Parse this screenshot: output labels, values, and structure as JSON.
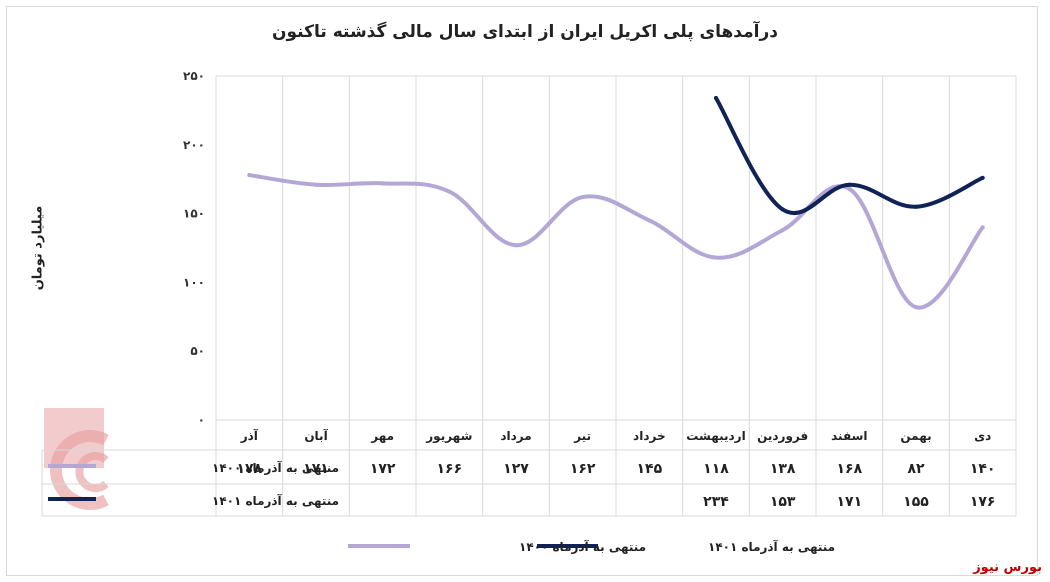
{
  "brand": "بورس نیوز",
  "chart_data": {
    "type": "line",
    "title": "درآمدهای پلی اکریل ایران از ابتدای سال مالی گذشته تاکنون",
    "ylabel": "میلیارد تومان",
    "xlabel": "",
    "ylim": [
      0,
      250
    ],
    "yticks": [
      "٠",
      "۵٠",
      "١٠٠",
      "١۵٠",
      "٢٠٠",
      "٢۵٠"
    ],
    "ytick_values": [
      0,
      50,
      100,
      150,
      200,
      250
    ],
    "categories": [
      "دی",
      "بهمن",
      "اسفند",
      "فروردین",
      "اردیبهشت",
      "خرداد",
      "تیر",
      "مرداد",
      "شهریور",
      "مهر",
      "آبان",
      "آذر"
    ],
    "series": [
      {
        "name": "منتهی به آذرماه ۱۴۰۰",
        "color": "#b4a7d6",
        "values": [
          140,
          82,
          168,
          138,
          118,
          145,
          162,
          127,
          166,
          172,
          171,
          178
        ],
        "labels": [
          "١۴٠",
          "٨٢",
          "١۶٨",
          "١٣٨",
          "١١٨",
          "١۴۵",
          "١۶٢",
          "١٢٧",
          "١۶۶",
          "١٧٢",
          "١٧١",
          "١٧٨"
        ]
      },
      {
        "name": "منتهی به آذرماه ۱۴۰۱",
        "color": "#0f2357",
        "values": [
          176,
          155,
          171,
          153,
          234,
          null,
          null,
          null,
          null,
          null,
          null,
          null
        ],
        "labels": [
          "١٧۶",
          "١۵۵",
          "١٧١",
          "١۵٣",
          "٢٣۴",
          "",
          "",
          "",
          "",
          "",
          "",
          ""
        ]
      }
    ],
    "grid": true,
    "legend": "bottom"
  }
}
